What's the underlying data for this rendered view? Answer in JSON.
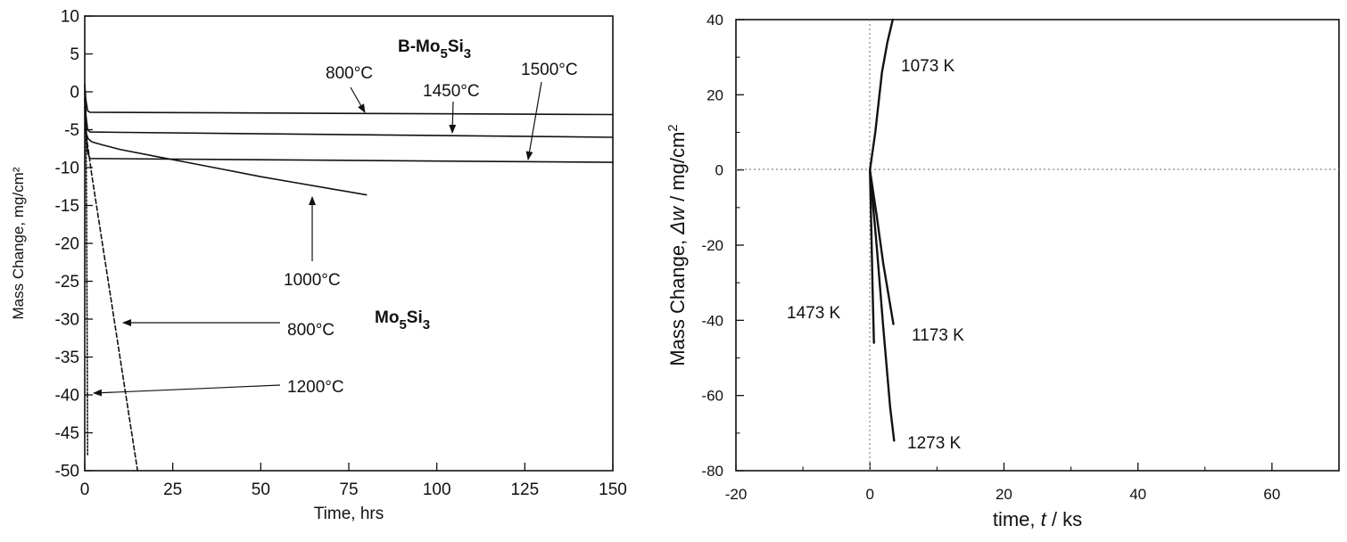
{
  "chart_data": [
    {
      "type": "line",
      "xlabel": "Time, hrs",
      "ylabel": "Mass Change, mg/cm²",
      "xlim": [
        0,
        150
      ],
      "ylim": [
        -50,
        10
      ],
      "xticks": [
        "0",
        "25",
        "50",
        "75",
        "100",
        "125",
        "150"
      ],
      "yticks": [
        "10",
        "5",
        "0",
        "-5",
        "-10",
        "-15",
        "-20",
        "-25",
        "-30",
        "-35",
        "-40",
        "-45",
        "-50"
      ],
      "grid": false,
      "labels": {
        "group_b_prefix": "B-Mo",
        "group_b_sub1": "5",
        "group_b_mid": "Si",
        "group_b_sub2": "3",
        "group_a_prefix": "Mo",
        "group_a_sub1": "5",
        "group_a_mid": "Si",
        "group_a_sub2": "3",
        "b800": "800°C",
        "b1450": "1450°C",
        "b1500": "1500°C",
        "b1000": "1000°C",
        "a800": "800°C",
        "a1200": "1200°C"
      },
      "series": [
        {
          "name": "800°C",
          "style": "solid",
          "x": [
            0,
            0.3,
            0.8,
            1.5,
            150
          ],
          "y": [
            1,
            -1,
            -2.5,
            -2.7,
            -3.0
          ]
        },
        {
          "name": "1450°C",
          "style": "solid",
          "x": [
            0,
            0.3,
            0.8,
            1.5,
            150
          ],
          "y": [
            0,
            -3,
            -5.0,
            -5.3,
            -6.0
          ]
        },
        {
          "name": "1500°C",
          "style": "solid",
          "x": [
            0,
            0.3,
            0.8,
            1.5,
            150
          ],
          "y": [
            -1,
            -4,
            -8.0,
            -8.8,
            -9.3
          ]
        },
        {
          "name": "1000°C",
          "style": "solid",
          "x": [
            0,
            1,
            2,
            5,
            10,
            20,
            30,
            40,
            50,
            60,
            70,
            80
          ],
          "y": [
            -5,
            -6.2,
            -6.6,
            -7.0,
            -7.6,
            -8.5,
            -9.4,
            -10.3,
            -11.2,
            -12.0,
            -12.8,
            -13.6
          ]
        },
        {
          "name": "800°C",
          "style": "dashed",
          "x": [
            0,
            0.5,
            2,
            15
          ],
          "y": [
            -2,
            -6,
            -11,
            -50
          ]
        },
        {
          "name": "1200°C",
          "style": "dotted",
          "x": [
            0.3,
            0.5,
            0.7,
            0.8
          ],
          "y": [
            -2,
            -15,
            -35,
            -48
          ]
        }
      ]
    },
    {
      "type": "line",
      "xlabel_prefix": "time, ",
      "xlabel_var": "t",
      "xlabel_suffix": " / ks",
      "ylabel_prefix": "Mass Change,  ",
      "ylabel_var": "Δw",
      "ylabel_unit": " / mg/cm",
      "ylabel_sup": "2",
      "xlim": [
        -20,
        70
      ],
      "ylim": [
        -80,
        40
      ],
      "xticks": [
        "-20",
        "0",
        "20",
        "40",
        "60"
      ],
      "yticks": [
        "40",
        "20",
        "0",
        "-20",
        "-40",
        "-60",
        "-80"
      ],
      "grid": false,
      "series": [
        {
          "name": "1073 K",
          "x": [
            0,
            0.8,
            1.8,
            2.6,
            3.4
          ],
          "y": [
            0,
            10,
            26,
            34,
            40
          ]
        },
        {
          "name": "1173 K",
          "x": [
            0,
            1.0,
            2.0,
            3.5
          ],
          "y": [
            0,
            -12,
            -25,
            -41
          ]
        },
        {
          "name": "1273 K",
          "x": [
            0,
            1.0,
            2.0,
            3.0,
            3.6
          ],
          "y": [
            0,
            -20,
            -42,
            -63,
            -72
          ]
        },
        {
          "name": "1473 K",
          "x": [
            0,
            0.2,
            0.4,
            0.6
          ],
          "y": [
            0,
            -15,
            -32,
            -46
          ]
        }
      ]
    }
  ]
}
